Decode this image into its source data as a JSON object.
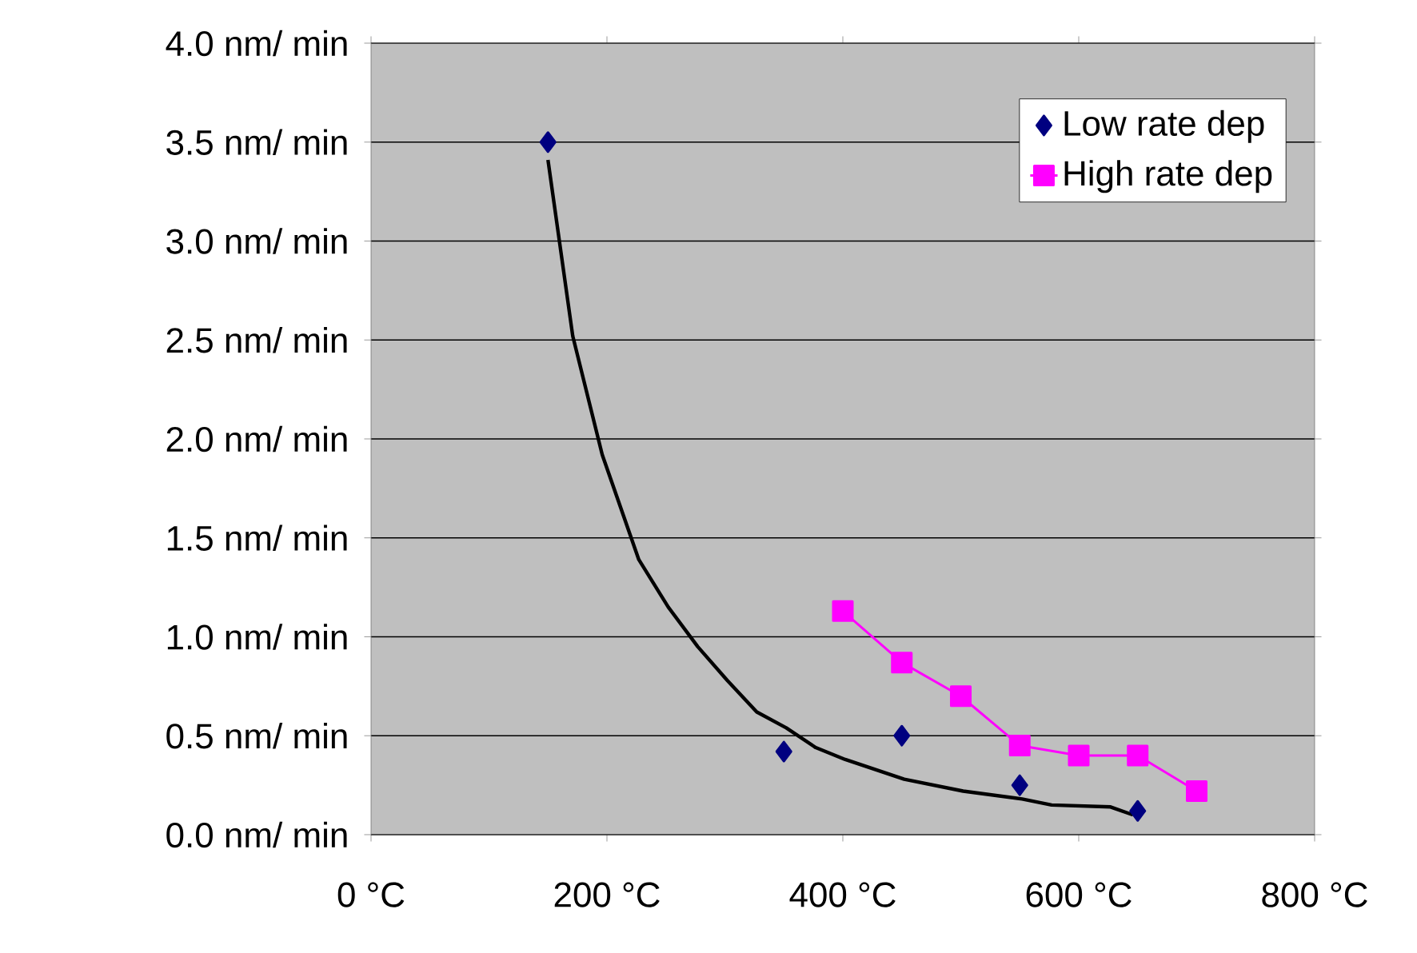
{
  "chart_data": {
    "type": "line",
    "xlim": [
      0,
      800
    ],
    "ylim": [
      0,
      4.0
    ],
    "xticks": [
      {
        "value": 0,
        "label": "0 °C"
      },
      {
        "value": 200,
        "label": "200 °C"
      },
      {
        "value": 400,
        "label": "400 °C"
      },
      {
        "value": 600,
        "label": "600 °C"
      },
      {
        "value": 800,
        "label": "800 °C"
      }
    ],
    "yticks": [
      {
        "value": 0,
        "label": "0.0 nm/ min"
      },
      {
        "value": 0.5,
        "label": "0.5 nm/ min"
      },
      {
        "value": 1.0,
        "label": "1.0 nm/ min"
      },
      {
        "value": 1.5,
        "label": "1.5 nm/ min"
      },
      {
        "value": 2.0,
        "label": "2.0 nm/ min"
      },
      {
        "value": 2.5,
        "label": "2.5 nm/ min"
      },
      {
        "value": 3.0,
        "label": "3.0 nm/ min"
      },
      {
        "value": 3.5,
        "label": "3.5 nm/ min"
      },
      {
        "value": 4.0,
        "label": "4.0 nm/ min"
      }
    ],
    "grid": "y",
    "legend": "top right",
    "series": [
      {
        "name": "Low  rate dep",
        "type": "scatter",
        "marker": "diamond",
        "color": "#000080",
        "x": [
          150,
          350,
          450,
          550,
          650
        ],
        "values": [
          3.5,
          0.42,
          0.5,
          0.25,
          0.12
        ]
      },
      {
        "name": "High rate dep",
        "marker": "square",
        "color": "#ff00ff",
        "x": [
          400,
          450,
          500,
          550,
          600,
          650,
          700
        ],
        "values": [
          1.13,
          0.87,
          0.7,
          0.45,
          0.4,
          0.4,
          0.22
        ]
      },
      {
        "type": "line",
        "marker": "none",
        "color": "#000000",
        "x": [
          150,
          171,
          196,
          227,
          252,
          277,
          302,
          327,
          352,
          377,
          402,
          452,
          502,
          552,
          577,
          627,
          646
        ],
        "values": [
          3.41,
          2.52,
          1.92,
          1.39,
          1.15,
          0.95,
          0.78,
          0.62,
          0.54,
          0.44,
          0.38,
          0.28,
          0.22,
          0.18,
          0.15,
          0.14,
          0.1
        ]
      }
    ]
  }
}
